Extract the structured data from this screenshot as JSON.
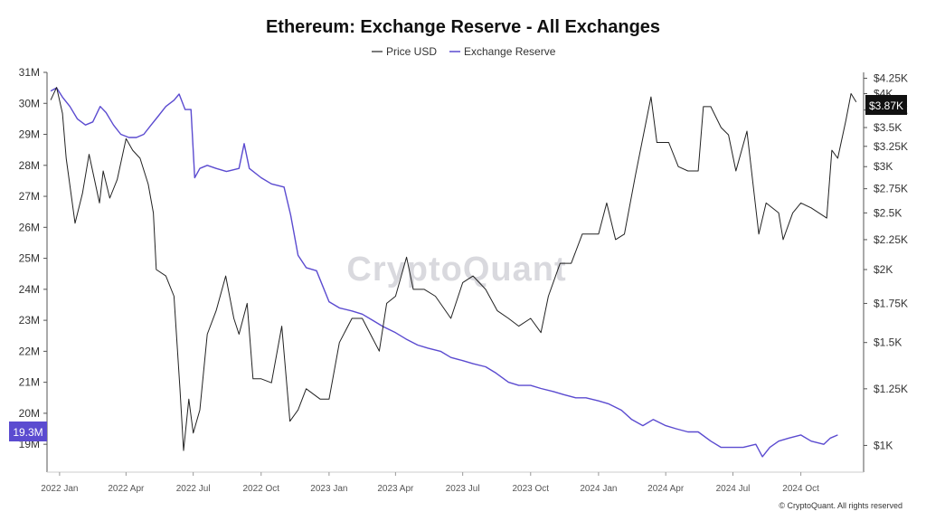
{
  "title": "Ethereum: Exchange Reserve - All Exchanges",
  "watermark": "CryptoQuant",
  "copyright": "© CryptoQuant. All rights reserved",
  "legend": {
    "price_label": "Price USD",
    "reserve_label": "Exchange Reserve"
  },
  "colors": {
    "price": "#222222",
    "reserve": "#5b4bd0",
    "axis": "#555555",
    "badge_price_bg": "#111111",
    "badge_reserve_bg": "#5b4bd0"
  },
  "current_reserve_badge": "19.3M",
  "current_price_badge": "$3.87K",
  "chart_data": {
    "type": "line",
    "title": "Ethereum: Exchange Reserve - All Exchanges",
    "x_ticks": [
      "2022 Jan",
      "2022 Apr",
      "2022 Jul",
      "2022 Oct",
      "2023 Jan",
      "2023 Apr",
      "2023 Jul",
      "2023 Oct",
      "2024 Jan",
      "2024 Apr",
      "2024 Jul",
      "2024 Oct"
    ],
    "left_axis": {
      "ticks": [
        "31M",
        "30M",
        "29M",
        "28M",
        "27M",
        "26M",
        "25M",
        "24M",
        "23M",
        "22M",
        "21M",
        "20M",
        "19M"
      ],
      "ylim": [
        18.1,
        31.0
      ]
    },
    "right_axis": {
      "scale": "log",
      "ticks": [
        "$4.25K",
        "$4K",
        "$3.75K",
        "$3.5K",
        "$3.25K",
        "$3K",
        "$2.75K",
        "$2.5K",
        "$2.25K",
        "$2K",
        "$1.75K",
        "$1.5K",
        "$1.25K",
        "$1K"
      ],
      "ylim": [
        900,
        4350
      ]
    },
    "series": [
      {
        "name": "Exchange Reserve",
        "axis": "left",
        "points": [
          [
            "2021-12-20",
            30.4
          ],
          [
            "2021-12-28",
            30.5
          ],
          [
            "2022-01-05",
            30.2
          ],
          [
            "2022-01-15",
            29.9
          ],
          [
            "2022-01-25",
            29.5
          ],
          [
            "2022-02-05",
            29.3
          ],
          [
            "2022-02-15",
            29.4
          ],
          [
            "2022-02-25",
            29.9
          ],
          [
            "2022-03-05",
            29.7
          ],
          [
            "2022-03-15",
            29.3
          ],
          [
            "2022-03-25",
            29.0
          ],
          [
            "2022-04-05",
            28.9
          ],
          [
            "2022-04-15",
            28.9
          ],
          [
            "2022-04-25",
            29.0
          ],
          [
            "2022-05-05",
            29.3
          ],
          [
            "2022-05-15",
            29.6
          ],
          [
            "2022-05-25",
            29.9
          ],
          [
            "2022-06-05",
            30.1
          ],
          [
            "2022-06-12",
            30.3
          ],
          [
            "2022-06-20",
            29.8
          ],
          [
            "2022-06-28",
            29.8
          ],
          [
            "2022-07-03",
            27.6
          ],
          [
            "2022-07-10",
            27.9
          ],
          [
            "2022-07-20",
            28.0
          ],
          [
            "2022-08-01",
            27.9
          ],
          [
            "2022-08-15",
            27.8
          ],
          [
            "2022-09-01",
            27.9
          ],
          [
            "2022-09-08",
            28.7
          ],
          [
            "2022-09-15",
            27.9
          ],
          [
            "2022-10-01",
            27.6
          ],
          [
            "2022-10-15",
            27.4
          ],
          [
            "2022-11-01",
            27.3
          ],
          [
            "2022-11-10",
            26.4
          ],
          [
            "2022-11-20",
            25.1
          ],
          [
            "2022-12-01",
            24.7
          ],
          [
            "2022-12-15",
            24.6
          ],
          [
            "2023-01-01",
            23.6
          ],
          [
            "2023-01-15",
            23.4
          ],
          [
            "2023-02-01",
            23.3
          ],
          [
            "2023-02-15",
            23.2
          ],
          [
            "2023-03-01",
            23.0
          ],
          [
            "2023-03-15",
            22.8
          ],
          [
            "2023-04-01",
            22.6
          ],
          [
            "2023-04-15",
            22.4
          ],
          [
            "2023-05-01",
            22.2
          ],
          [
            "2023-05-15",
            22.1
          ],
          [
            "2023-06-01",
            22.0
          ],
          [
            "2023-06-15",
            21.8
          ],
          [
            "2023-07-01",
            21.7
          ],
          [
            "2023-07-15",
            21.6
          ],
          [
            "2023-08-01",
            21.5
          ],
          [
            "2023-08-15",
            21.3
          ],
          [
            "2023-09-01",
            21.0
          ],
          [
            "2023-09-15",
            20.9
          ],
          [
            "2023-10-01",
            20.9
          ],
          [
            "2023-10-15",
            20.8
          ],
          [
            "2023-11-01",
            20.7
          ],
          [
            "2023-11-15",
            20.6
          ],
          [
            "2023-12-01",
            20.5
          ],
          [
            "2023-12-15",
            20.5
          ],
          [
            "2024-01-01",
            20.4
          ],
          [
            "2024-01-15",
            20.3
          ],
          [
            "2024-02-01",
            20.1
          ],
          [
            "2024-02-15",
            19.8
          ],
          [
            "2024-03-01",
            19.6
          ],
          [
            "2024-03-15",
            19.8
          ],
          [
            "2024-04-01",
            19.6
          ],
          [
            "2024-04-15",
            19.5
          ],
          [
            "2024-05-01",
            19.4
          ],
          [
            "2024-05-15",
            19.4
          ],
          [
            "2024-06-01",
            19.1
          ],
          [
            "2024-06-15",
            18.9
          ],
          [
            "2024-07-01",
            18.9
          ],
          [
            "2024-07-15",
            18.9
          ],
          [
            "2024-08-01",
            19.0
          ],
          [
            "2024-08-10",
            18.6
          ],
          [
            "2024-08-20",
            18.9
          ],
          [
            "2024-09-01",
            19.1
          ],
          [
            "2024-09-15",
            19.2
          ],
          [
            "2024-10-01",
            19.3
          ],
          [
            "2024-10-15",
            19.1
          ],
          [
            "2024-11-01",
            19.0
          ],
          [
            "2024-11-10",
            19.2
          ],
          [
            "2024-11-20",
            19.3
          ]
        ]
      },
      {
        "name": "Price USD",
        "axis": "right",
        "points": [
          [
            "2021-12-20",
            3900
          ],
          [
            "2021-12-28",
            4100
          ],
          [
            "2022-01-05",
            3700
          ],
          [
            "2022-01-10",
            3100
          ],
          [
            "2022-01-22",
            2400
          ],
          [
            "2022-02-01",
            2700
          ],
          [
            "2022-02-10",
            3150
          ],
          [
            "2022-02-24",
            2600
          ],
          [
            "2022-03-01",
            2950
          ],
          [
            "2022-03-10",
            2650
          ],
          [
            "2022-03-20",
            2850
          ],
          [
            "2022-04-01",
            3350
          ],
          [
            "2022-04-10",
            3200
          ],
          [
            "2022-04-20",
            3100
          ],
          [
            "2022-05-01",
            2800
          ],
          [
            "2022-05-08",
            2500
          ],
          [
            "2022-05-12",
            2000
          ],
          [
            "2022-05-25",
            1950
          ],
          [
            "2022-06-05",
            1800
          ],
          [
            "2022-06-13",
            1250
          ],
          [
            "2022-06-18",
            980
          ],
          [
            "2022-06-25",
            1200
          ],
          [
            "2022-07-01",
            1050
          ],
          [
            "2022-07-10",
            1150
          ],
          [
            "2022-07-20",
            1550
          ],
          [
            "2022-08-01",
            1700
          ],
          [
            "2022-08-14",
            1950
          ],
          [
            "2022-08-25",
            1650
          ],
          [
            "2022-09-01",
            1550
          ],
          [
            "2022-09-12",
            1750
          ],
          [
            "2022-09-20",
            1300
          ],
          [
            "2022-10-01",
            1300
          ],
          [
            "2022-10-15",
            1280
          ],
          [
            "2022-10-29",
            1600
          ],
          [
            "2022-11-09",
            1100
          ],
          [
            "2022-11-20",
            1150
          ],
          [
            "2022-12-01",
            1250
          ],
          [
            "2022-12-20",
            1200
          ],
          [
            "2023-01-01",
            1200
          ],
          [
            "2023-01-15",
            1500
          ],
          [
            "2023-02-01",
            1650
          ],
          [
            "2023-02-15",
            1650
          ],
          [
            "2023-03-10",
            1450
          ],
          [
            "2023-03-20",
            1750
          ],
          [
            "2023-04-01",
            1800
          ],
          [
            "2023-04-16",
            2100
          ],
          [
            "2023-04-25",
            1850
          ],
          [
            "2023-05-10",
            1850
          ],
          [
            "2023-05-25",
            1800
          ],
          [
            "2023-06-15",
            1650
          ],
          [
            "2023-07-01",
            1900
          ],
          [
            "2023-07-15",
            1950
          ],
          [
            "2023-08-01",
            1850
          ],
          [
            "2023-08-17",
            1700
          ],
          [
            "2023-09-01",
            1650
          ],
          [
            "2023-09-15",
            1600
          ],
          [
            "2023-10-01",
            1650
          ],
          [
            "2023-10-15",
            1560
          ],
          [
            "2023-10-25",
            1800
          ],
          [
            "2023-11-10",
            2050
          ],
          [
            "2023-11-25",
            2050
          ],
          [
            "2023-12-10",
            2300
          ],
          [
            "2024-01-01",
            2300
          ],
          [
            "2024-01-12",
            2600
          ],
          [
            "2024-01-24",
            2250
          ],
          [
            "2024-02-05",
            2300
          ],
          [
            "2024-02-20",
            2900
          ],
          [
            "2024-03-12",
            3950
          ],
          [
            "2024-03-20",
            3300
          ],
          [
            "2024-04-05",
            3300
          ],
          [
            "2024-04-18",
            3000
          ],
          [
            "2024-05-01",
            2950
          ],
          [
            "2024-05-15",
            2950
          ],
          [
            "2024-05-22",
            3800
          ],
          [
            "2024-06-01",
            3800
          ],
          [
            "2024-06-15",
            3500
          ],
          [
            "2024-06-25",
            3400
          ],
          [
            "2024-07-05",
            2950
          ],
          [
            "2024-07-20",
            3450
          ],
          [
            "2024-08-05",
            2300
          ],
          [
            "2024-08-15",
            2600
          ],
          [
            "2024-09-01",
            2500
          ],
          [
            "2024-09-07",
            2250
          ],
          [
            "2024-09-20",
            2500
          ],
          [
            "2024-10-01",
            2600
          ],
          [
            "2024-10-15",
            2550
          ],
          [
            "2024-11-05",
            2450
          ],
          [
            "2024-11-12",
            3200
          ],
          [
            "2024-11-20",
            3100
          ],
          [
            "2024-12-01",
            3600
          ],
          [
            "2024-12-08",
            4000
          ],
          [
            "2024-12-15",
            3870
          ]
        ]
      }
    ]
  }
}
